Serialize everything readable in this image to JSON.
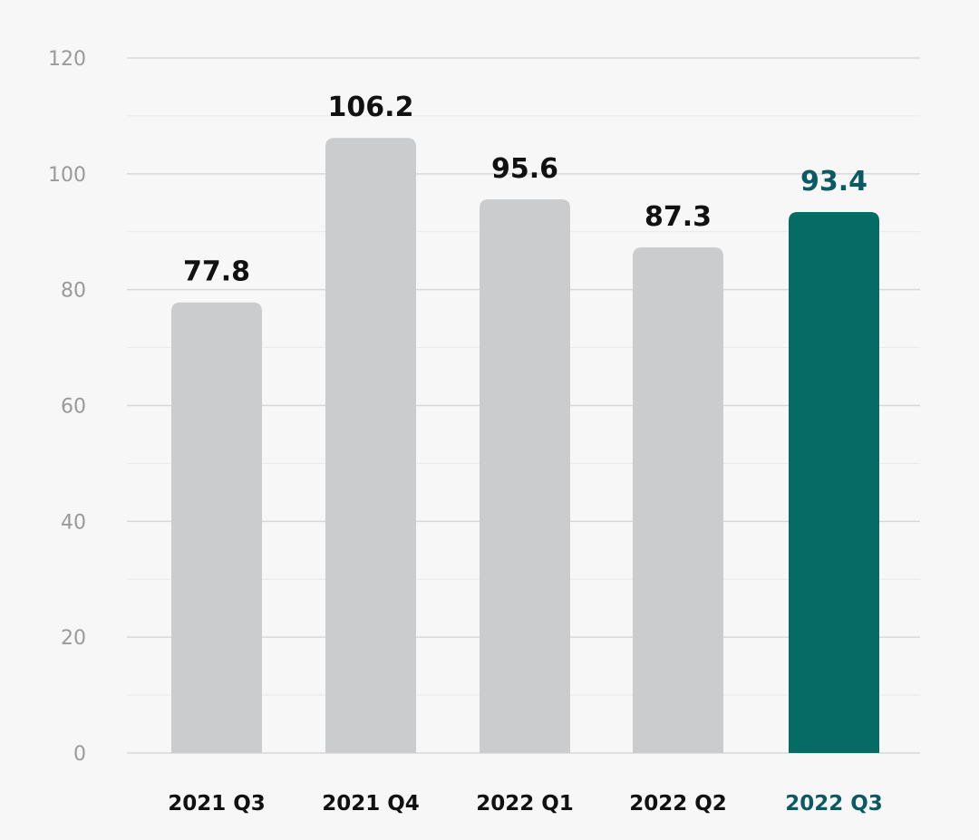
{
  "chart_data": {
    "type": "bar",
    "categories": [
      "2021 Q3",
      "2021 Q4",
      "2022 Q1",
      "2022 Q2",
      "2022 Q3"
    ],
    "values": [
      77.8,
      106.2,
      95.6,
      87.3,
      93.4
    ],
    "value_labels": [
      "77.8",
      "106.2",
      "95.6",
      "87.3",
      "93.4"
    ],
    "highlight_index": 4,
    "ylim": [
      0,
      120
    ],
    "yticks": [
      0,
      20,
      40,
      60,
      80,
      100,
      120
    ],
    "grid": true,
    "title": "",
    "xlabel": "",
    "ylabel": ""
  },
  "colors": {
    "background": "#f7f7f7",
    "bar_default": "#cbccce",
    "bar_highlight": "#056b64",
    "label_default": "#111111",
    "label_highlight": "#0b5a63",
    "grid_major": "#d8d8d8",
    "grid_minor": "#e9e9e9",
    "tick_text": "#9a9a9a"
  }
}
